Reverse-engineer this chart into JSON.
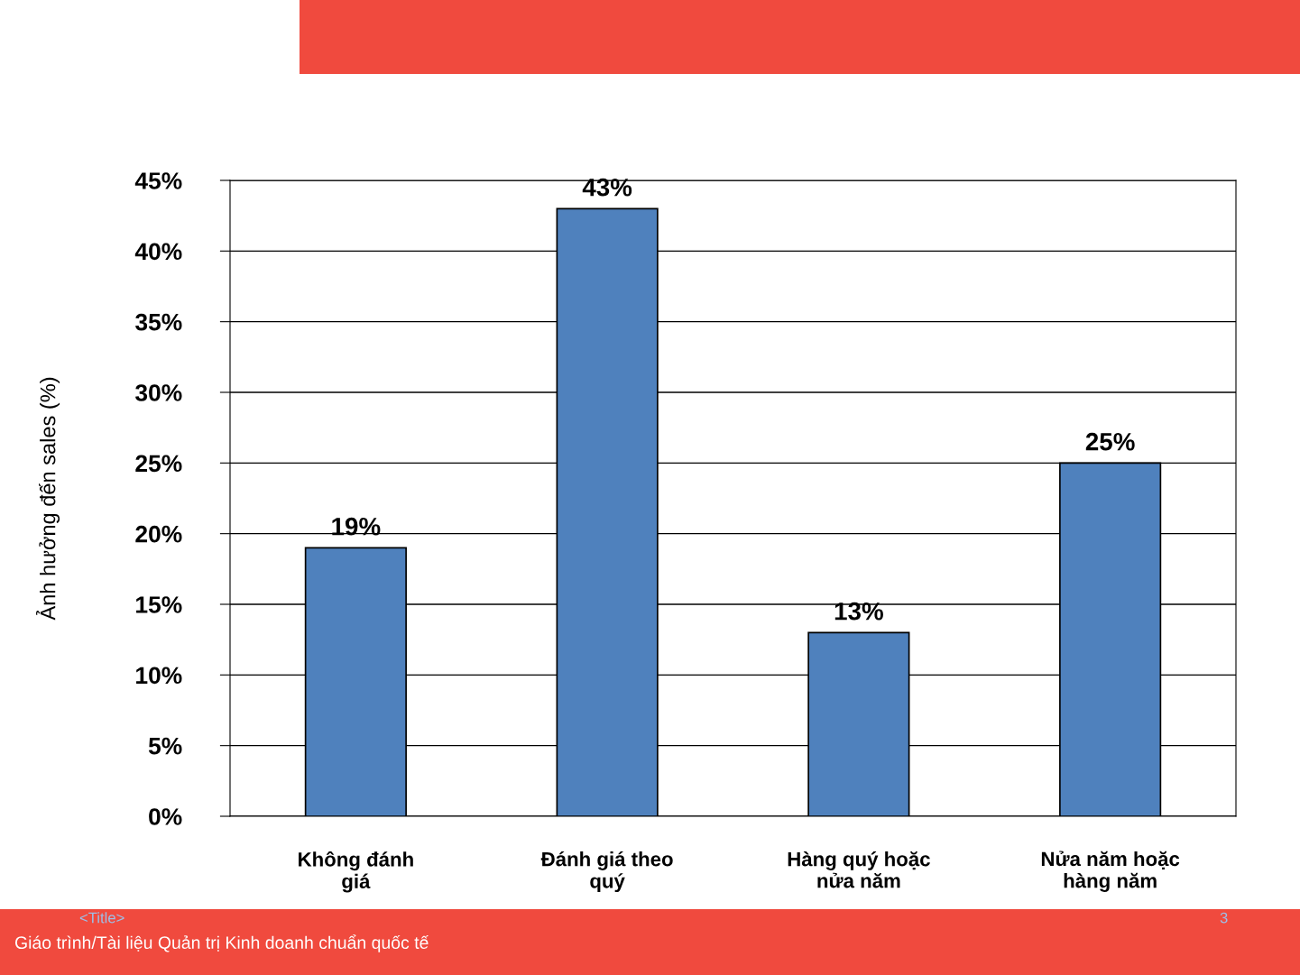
{
  "chart_data": {
    "type": "bar",
    "ylabel": "Ảnh hưởng đến sales (%)",
    "categories": [
      "Không đánh\ngiá",
      "Đánh giá theo\nquý",
      "Hàng quý hoặc\nnửa năm",
      "Nửa năm hoặc\nhàng năm"
    ],
    "values": [
      19,
      43,
      13,
      25
    ],
    "value_labels": [
      "19%",
      "43%",
      "13%",
      "25%"
    ],
    "color": "#4f81bd",
    "ylim": [
      0,
      45
    ],
    "yticks": [
      {
        "value": 0,
        "label": "0%"
      },
      {
        "value": 5,
        "label": "5%"
      },
      {
        "value": 10,
        "label": "10%"
      },
      {
        "value": 15,
        "label": "15%"
      },
      {
        "value": 20,
        "label": "20%"
      },
      {
        "value": 25,
        "label": "25%"
      },
      {
        "value": 30,
        "label": "30%"
      },
      {
        "value": 35,
        "label": "35%"
      },
      {
        "value": 40,
        "label": "40%"
      },
      {
        "value": 45,
        "label": "45%"
      }
    ],
    "grid": "y",
    "annotations": [
      "Giáo trình/Tài liệu Quản trị Kinh doanh chuẩn quốc tế",
      "<Title>",
      "3"
    ]
  }
}
